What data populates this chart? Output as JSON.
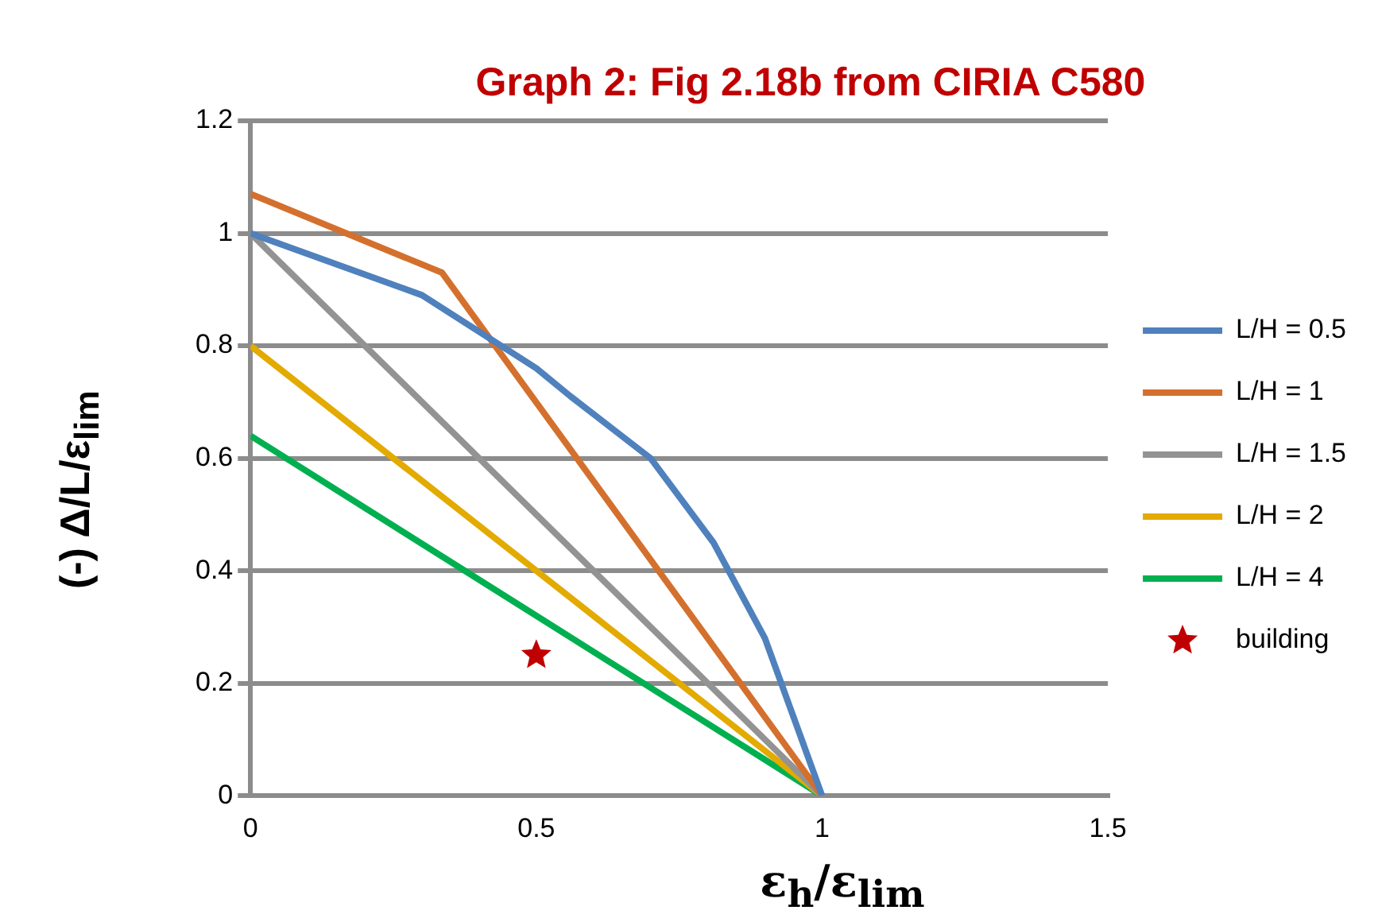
{
  "chart_data": {
    "type": "line",
    "title": "Graph 2:  Fig 2.18b from CIRIA C580",
    "xlabel": "ε$_{h}$/ε$_{lim}$",
    "ylabel": "(-) Δ/L/ε$_{lim}$",
    "xlim": [
      0,
      1.5
    ],
    "xticks": [
      0,
      0.5,
      1,
      1.5
    ],
    "ylim": [
      0,
      1.2
    ],
    "yticks": [
      0,
      0.2,
      0.4,
      0.6,
      0.8,
      1,
      1.2
    ],
    "grid": "y",
    "legend": "right",
    "marker": "none",
    "line_style": "solid",
    "series": [
      {
        "name": "L/H = 0.5",
        "color": "#4f81bd",
        "x": [
          0,
          0.3,
          0.5,
          0.56,
          0.7,
          0.81,
          0.9,
          1
        ],
        "values": [
          1,
          0.89,
          0.76,
          0.71,
          0.6,
          0.45,
          0.28,
          0
        ]
      },
      {
        "name": "L/H = 1",
        "color": "#d4702d",
        "x": [
          0,
          0.335,
          1
        ],
        "values": [
          1.07,
          0.93,
          0
        ]
      },
      {
        "name": "L/H = 1.5",
        "color": "#939393",
        "x": [
          0,
          1
        ],
        "values": [
          1,
          0
        ]
      },
      {
        "name": "L/H = 2",
        "color": "#e3aa00",
        "x": [
          0,
          1
        ],
        "values": [
          0.8,
          0
        ]
      },
      {
        "name": "L/H = 4",
        "color": "#00b050",
        "x": [
          0,
          1
        ],
        "values": [
          0.64,
          0
        ]
      },
      {
        "name": "building",
        "type": "scatter",
        "marker": "star",
        "color": "#c00000",
        "x": [
          0.5
        ],
        "values": [
          0.25
        ]
      }
    ]
  }
}
